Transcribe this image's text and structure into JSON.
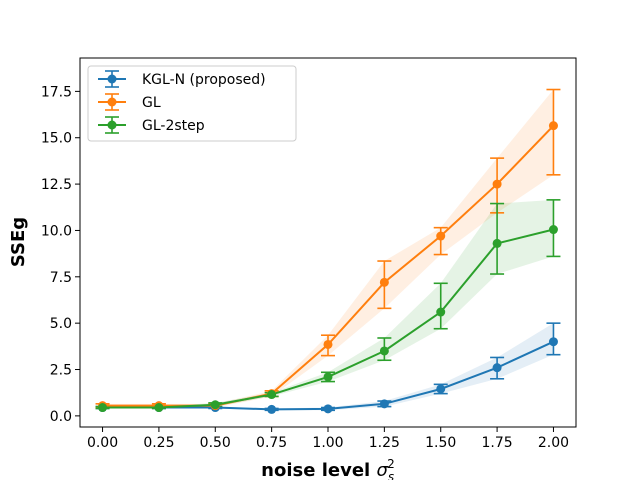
{
  "chart_data": {
    "type": "line",
    "xlabel": "noise level",
    "xlabel_symbol": "σ",
    "xlabel_sub": "s",
    "xlabel_sup": "2",
    "ylabel": "SSEg",
    "xlim": [
      -0.1,
      2.1
    ],
    "ylim": [
      -0.6,
      19.3
    ],
    "x": [
      0.0,
      0.25,
      0.5,
      0.75,
      1.0,
      1.25,
      1.5,
      1.75,
      2.0
    ],
    "x_tick_labels": [
      "0.00",
      "0.25",
      "0.50",
      "0.75",
      "1.00",
      "1.25",
      "1.50",
      "1.75",
      "2.00"
    ],
    "y_ticks": [
      0.0,
      2.5,
      5.0,
      7.5,
      10.0,
      12.5,
      15.0,
      17.5
    ],
    "y_tick_labels": [
      "0.0",
      "2.5",
      "5.0",
      "7.5",
      "10.0",
      "12.5",
      "15.0",
      "17.5"
    ],
    "legend_position": "upper-left",
    "series": [
      {
        "name": "KGL-N (proposed)",
        "color": "#1f77b4",
        "values": [
          0.45,
          0.45,
          0.45,
          0.35,
          0.38,
          0.65,
          1.45,
          2.6,
          4.0
        ],
        "lower": [
          0.4,
          0.4,
          0.4,
          0.3,
          0.3,
          0.5,
          1.2,
          2.0,
          3.3
        ],
        "upper": [
          0.5,
          0.5,
          0.5,
          0.4,
          0.45,
          0.8,
          1.7,
          3.15,
          5.0
        ]
      },
      {
        "name": "GL",
        "color": "#ff7f0e",
        "values": [
          0.55,
          0.55,
          0.55,
          1.2,
          3.85,
          7.2,
          9.7,
          12.5,
          15.65
        ],
        "lower": [
          0.45,
          0.45,
          0.45,
          1.05,
          3.25,
          5.8,
          8.7,
          10.95,
          13.0
        ],
        "upper": [
          0.65,
          0.65,
          0.65,
          1.35,
          4.35,
          8.35,
          10.15,
          13.9,
          17.6
        ]
      },
      {
        "name": "GL-2step",
        "color": "#2ca02c",
        "values": [
          0.45,
          0.45,
          0.6,
          1.15,
          2.1,
          3.5,
          5.6,
          9.3,
          10.05
        ],
        "lower": [
          0.4,
          0.4,
          0.5,
          1.05,
          1.85,
          3.0,
          4.7,
          7.65,
          8.6
        ],
        "upper": [
          0.5,
          0.5,
          0.7,
          1.25,
          2.35,
          4.2,
          7.15,
          11.45,
          11.65
        ]
      }
    ]
  }
}
